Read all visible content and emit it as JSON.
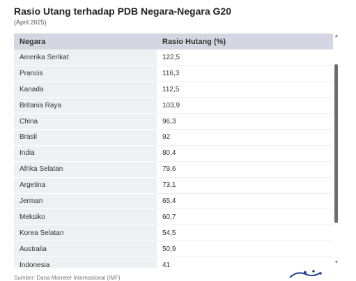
{
  "header": {
    "title": "Rasio Utang terhadap PDB Negara-Negara G20",
    "subtitle": "(April 2025)"
  },
  "chart_data": {
    "type": "table",
    "columns": [
      "Negara",
      "Rasio Hutang (%)"
    ],
    "rows": [
      [
        "Amerika Serikat",
        "122,5"
      ],
      [
        "Prancis",
        "116,3"
      ],
      [
        "Kanada",
        "112,5"
      ],
      [
        "Britania Raya",
        "103,9"
      ],
      [
        "China",
        "96,3"
      ],
      [
        "Brasil",
        "92"
      ],
      [
        "India",
        "80,4"
      ],
      [
        "Afrika Selatan",
        "79,6"
      ],
      [
        "Argetina",
        "73,1"
      ],
      [
        "Jerman",
        "65,4"
      ],
      [
        "Meksiko",
        "60,7"
      ],
      [
        "Korea Selatan",
        "54,5"
      ],
      [
        "Australia",
        "50,9"
      ],
      [
        "Indonesia",
        "41"
      ]
    ],
    "colors": {
      "header_bg": "#d6d6e2",
      "first_column_bg": "#eef0f3"
    }
  },
  "footer": {
    "source": "Sumber: Dana Moneter Internasional (IMF)"
  },
  "scrollbar": {
    "up_icon": "triangle-up-icon",
    "down_icon": "triangle-down-icon"
  }
}
